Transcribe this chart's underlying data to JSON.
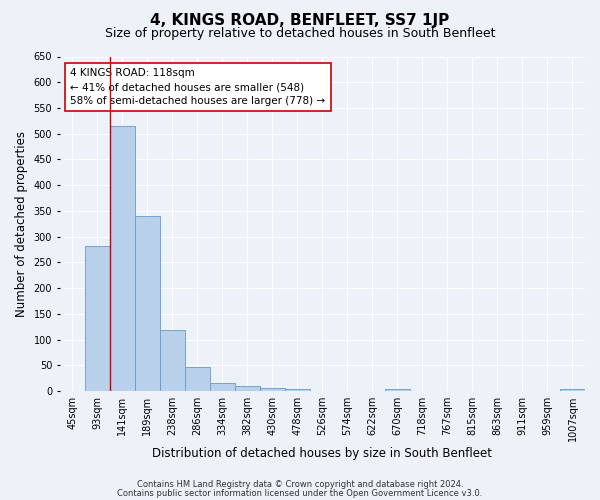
{
  "title": "4, KINGS ROAD, BENFLEET, SS7 1JP",
  "subtitle": "Size of property relative to detached houses in South Benfleet",
  "xlabel": "Distribution of detached houses by size in South Benfleet",
  "ylabel": "Number of detached properties",
  "footnote1": "Contains HM Land Registry data © Crown copyright and database right 2024.",
  "footnote2": "Contains public sector information licensed under the Open Government Licence v3.0.",
  "bin_labels": [
    "45sqm",
    "93sqm",
    "141sqm",
    "189sqm",
    "238sqm",
    "286sqm",
    "334sqm",
    "382sqm",
    "430sqm",
    "478sqm",
    "526sqm",
    "574sqm",
    "622sqm",
    "670sqm",
    "718sqm",
    "767sqm",
    "815sqm",
    "863sqm",
    "911sqm",
    "959sqm",
    "1007sqm"
  ],
  "bar_values": [
    0,
    282,
    516,
    340,
    118,
    47,
    16,
    10,
    7,
    5,
    0,
    0,
    0,
    5,
    0,
    0,
    0,
    0,
    0,
    0,
    5
  ],
  "bar_color": "#b8d0ea",
  "bar_edge_color": "#6699cc",
  "ylim": [
    0,
    650
  ],
  "yticks": [
    0,
    50,
    100,
    150,
    200,
    250,
    300,
    350,
    400,
    450,
    500,
    550,
    600,
    650
  ],
  "property_size_label": "141sqm",
  "property_size_bin": 2,
  "vline_color": "#cc0000",
  "annotation_line1": "4 KINGS ROAD: 118sqm",
  "annotation_line2": "← 41% of detached houses are smaller (548)",
  "annotation_line3": "58% of semi-detached houses are larger (778) →",
  "annotation_box_color": "#ffffff",
  "annotation_box_edge": "#cc0000",
  "bg_color": "#edf1f8",
  "plot_bg_color": "#edf1f8",
  "grid_color": "#ffffff",
  "title_fontsize": 11,
  "subtitle_fontsize": 9,
  "axis_label_fontsize": 8.5,
  "tick_fontsize": 7,
  "annotation_fontsize": 7.5
}
